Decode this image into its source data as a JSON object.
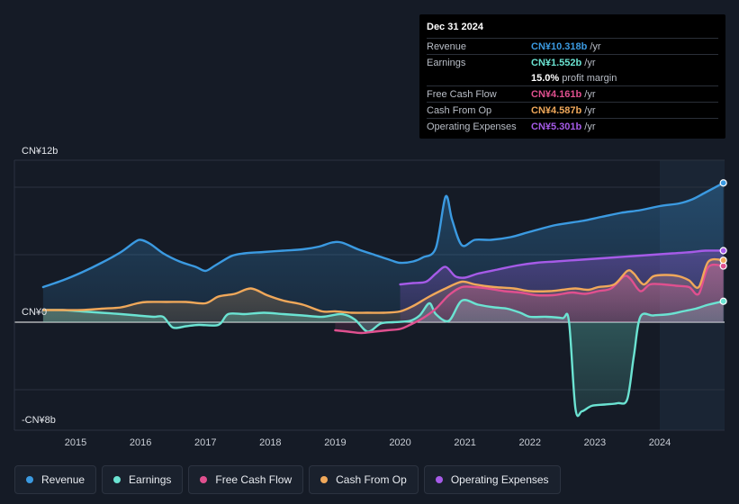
{
  "tooltip": {
    "date": "Dec 31 2024",
    "rows": [
      {
        "label": "Revenue",
        "value": "CN¥10.318b",
        "unit": "/yr",
        "color": "#3b9ae1"
      },
      {
        "label": "Earnings",
        "value": "CN¥1.552b",
        "unit": "/yr",
        "color": "#6be3d2"
      },
      {
        "label": "",
        "value": "15.0%",
        "unit": "profit margin",
        "color": "#ffffff"
      },
      {
        "label": "Free Cash Flow",
        "value": "CN¥4.161b",
        "unit": "/yr",
        "color": "#e0508f"
      },
      {
        "label": "Cash From Op",
        "value": "CN¥4.587b",
        "unit": "/yr",
        "color": "#f0a85a"
      },
      {
        "label": "Operating Expenses",
        "value": "CN¥5.301b",
        "unit": "/yr",
        "color": "#a65be8"
      }
    ]
  },
  "legend": [
    {
      "label": "Revenue",
      "color": "#3b9ae1"
    },
    {
      "label": "Earnings",
      "color": "#6be3d2"
    },
    {
      "label": "Free Cash Flow",
      "color": "#e0508f"
    },
    {
      "label": "Cash From Op",
      "color": "#f0a85a"
    },
    {
      "label": "Operating Expenses",
      "color": "#a65be8"
    }
  ],
  "chart_data": {
    "type": "area",
    "currency": "CN¥",
    "y_unit": "billions",
    "ylim": [
      -8,
      12
    ],
    "y_tick_labels": [
      {
        "value": 12,
        "label": "CN¥12b"
      },
      {
        "value": 0,
        "label": "CN¥0"
      },
      {
        "value": -8,
        "label": "-CN¥8b"
      }
    ],
    "x_ticks": [
      2015,
      2016,
      2017,
      2018,
      2019,
      2020,
      2021,
      2022,
      2023,
      2024
    ],
    "xlim": [
      2014.45,
      2024.98
    ],
    "forecast_shade_from": 2024.0,
    "series": [
      {
        "name": "Revenue",
        "color": "#3b9ae1",
        "fill": true,
        "end_marker": true,
        "points": [
          [
            2014.5,
            2.6
          ],
          [
            2014.8,
            3.1
          ],
          [
            2015.1,
            3.7
          ],
          [
            2015.4,
            4.4
          ],
          [
            2015.7,
            5.2
          ],
          [
            2015.9,
            5.9
          ],
          [
            2016.0,
            6.1
          ],
          [
            2016.15,
            5.8
          ],
          [
            2016.35,
            5.1
          ],
          [
            2016.6,
            4.5
          ],
          [
            2016.85,
            4.1
          ],
          [
            2017.0,
            3.8
          ],
          [
            2017.15,
            4.2
          ],
          [
            2017.4,
            4.9
          ],
          [
            2017.6,
            5.1
          ],
          [
            2017.9,
            5.2
          ],
          [
            2018.2,
            5.3
          ],
          [
            2018.5,
            5.4
          ],
          [
            2018.75,
            5.6
          ],
          [
            2018.95,
            5.9
          ],
          [
            2019.1,
            5.9
          ],
          [
            2019.35,
            5.4
          ],
          [
            2019.6,
            5.0
          ],
          [
            2019.85,
            4.6
          ],
          [
            2020.0,
            4.4
          ],
          [
            2020.2,
            4.5
          ],
          [
            2020.35,
            4.8
          ],
          [
            2020.55,
            5.5
          ],
          [
            2020.7,
            9.3
          ],
          [
            2020.8,
            7.6
          ],
          [
            2020.95,
            5.7
          ],
          [
            2021.15,
            6.1
          ],
          [
            2021.4,
            6.1
          ],
          [
            2021.7,
            6.3
          ],
          [
            2022.0,
            6.7
          ],
          [
            2022.4,
            7.2
          ],
          [
            2022.8,
            7.5
          ],
          [
            2023.1,
            7.8
          ],
          [
            2023.4,
            8.1
          ],
          [
            2023.7,
            8.3
          ],
          [
            2024.0,
            8.6
          ],
          [
            2024.3,
            8.8
          ],
          [
            2024.5,
            9.1
          ],
          [
            2024.7,
            9.6
          ],
          [
            2024.98,
            10.318
          ]
        ]
      },
      {
        "name": "Earnings",
        "color": "#6be3d2",
        "fill": true,
        "end_marker": true,
        "points": [
          [
            2014.5,
            0.9
          ],
          [
            2014.8,
            0.9
          ],
          [
            2015.1,
            0.8
          ],
          [
            2015.4,
            0.7
          ],
          [
            2015.7,
            0.6
          ],
          [
            2015.95,
            0.5
          ],
          [
            2016.2,
            0.4
          ],
          [
            2016.35,
            0.4
          ],
          [
            2016.5,
            -0.4
          ],
          [
            2016.7,
            -0.3
          ],
          [
            2016.9,
            -0.2
          ],
          [
            2017.2,
            -0.2
          ],
          [
            2017.35,
            0.6
          ],
          [
            2017.6,
            0.6
          ],
          [
            2017.9,
            0.7
          ],
          [
            2018.2,
            0.6
          ],
          [
            2018.5,
            0.5
          ],
          [
            2018.8,
            0.4
          ],
          [
            2019.1,
            0.6
          ],
          [
            2019.3,
            0.2
          ],
          [
            2019.5,
            -0.7
          ],
          [
            2019.7,
            -0.1
          ],
          [
            2019.9,
            0.0
          ],
          [
            2020.15,
            0.1
          ],
          [
            2020.3,
            0.5
          ],
          [
            2020.45,
            1.4
          ],
          [
            2020.55,
            0.6
          ],
          [
            2020.75,
            0.1
          ],
          [
            2020.95,
            1.6
          ],
          [
            2021.2,
            1.3
          ],
          [
            2021.45,
            1.1
          ],
          [
            2021.65,
            1.0
          ],
          [
            2021.85,
            0.7
          ],
          [
            2022.0,
            0.4
          ],
          [
            2022.25,
            0.4
          ],
          [
            2022.5,
            0.3
          ],
          [
            2022.6,
            0.1
          ],
          [
            2022.7,
            -6.4
          ],
          [
            2022.8,
            -6.6
          ],
          [
            2022.95,
            -6.2
          ],
          [
            2023.15,
            -6.1
          ],
          [
            2023.35,
            -6.0
          ],
          [
            2023.5,
            -5.7
          ],
          [
            2023.6,
            -2.5
          ],
          [
            2023.7,
            0.4
          ],
          [
            2023.9,
            0.5
          ],
          [
            2024.15,
            0.6
          ],
          [
            2024.35,
            0.8
          ],
          [
            2024.55,
            1.0
          ],
          [
            2024.75,
            1.3
          ],
          [
            2024.98,
            1.552
          ]
        ]
      },
      {
        "name": "Free Cash Flow",
        "color": "#e0508f",
        "fill": true,
        "end_marker": true,
        "points": [
          [
            2019.0,
            -0.6
          ],
          [
            2019.2,
            -0.7
          ],
          [
            2019.4,
            -0.8
          ],
          [
            2019.6,
            -0.7
          ],
          [
            2019.8,
            -0.6
          ],
          [
            2020.0,
            -0.5
          ],
          [
            2020.15,
            -0.2
          ],
          [
            2020.35,
            0.3
          ],
          [
            2020.55,
            1.0
          ],
          [
            2020.75,
            2.0
          ],
          [
            2020.95,
            2.6
          ],
          [
            2021.15,
            2.6
          ],
          [
            2021.35,
            2.5
          ],
          [
            2021.6,
            2.3
          ],
          [
            2021.85,
            2.2
          ],
          [
            2022.1,
            2.0
          ],
          [
            2022.35,
            2.0
          ],
          [
            2022.5,
            2.1
          ],
          [
            2022.65,
            2.2
          ],
          [
            2022.85,
            2.1
          ],
          [
            2023.05,
            2.3
          ],
          [
            2023.25,
            2.5
          ],
          [
            2023.45,
            3.4
          ],
          [
            2023.55,
            3.2
          ],
          [
            2023.7,
            2.3
          ],
          [
            2023.85,
            2.8
          ],
          [
            2024.05,
            2.8
          ],
          [
            2024.25,
            2.7
          ],
          [
            2024.45,
            2.6
          ],
          [
            2024.6,
            2.1
          ],
          [
            2024.75,
            4.1
          ],
          [
            2024.98,
            4.161
          ]
        ]
      },
      {
        "name": "Cash From Op",
        "color": "#f0a85a",
        "fill": true,
        "end_marker": true,
        "points": [
          [
            2014.5,
            0.9
          ],
          [
            2014.8,
            0.9
          ],
          [
            2015.1,
            0.9
          ],
          [
            2015.4,
            1.0
          ],
          [
            2015.7,
            1.1
          ],
          [
            2015.95,
            1.4
          ],
          [
            2016.1,
            1.5
          ],
          [
            2016.4,
            1.5
          ],
          [
            2016.7,
            1.5
          ],
          [
            2017.0,
            1.4
          ],
          [
            2017.2,
            1.9
          ],
          [
            2017.45,
            2.1
          ],
          [
            2017.7,
            2.5
          ],
          [
            2017.95,
            2.0
          ],
          [
            2018.2,
            1.6
          ],
          [
            2018.5,
            1.3
          ],
          [
            2018.8,
            0.8
          ],
          [
            2019.0,
            0.8
          ],
          [
            2019.25,
            0.7
          ],
          [
            2019.5,
            0.7
          ],
          [
            2019.75,
            0.7
          ],
          [
            2020.0,
            0.8
          ],
          [
            2020.2,
            1.2
          ],
          [
            2020.45,
            1.9
          ],
          [
            2020.7,
            2.5
          ],
          [
            2020.95,
            3.0
          ],
          [
            2021.15,
            2.8
          ],
          [
            2021.45,
            2.6
          ],
          [
            2021.75,
            2.5
          ],
          [
            2022.0,
            2.3
          ],
          [
            2022.3,
            2.3
          ],
          [
            2022.5,
            2.4
          ],
          [
            2022.7,
            2.5
          ],
          [
            2022.9,
            2.4
          ],
          [
            2023.05,
            2.6
          ],
          [
            2023.3,
            2.8
          ],
          [
            2023.5,
            3.8
          ],
          [
            2023.6,
            3.6
          ],
          [
            2023.75,
            2.8
          ],
          [
            2023.9,
            3.4
          ],
          [
            2024.1,
            3.5
          ],
          [
            2024.3,
            3.4
          ],
          [
            2024.45,
            3.1
          ],
          [
            2024.6,
            2.6
          ],
          [
            2024.75,
            4.5
          ],
          [
            2024.98,
            4.587
          ]
        ]
      },
      {
        "name": "Operating Expenses",
        "color": "#a65be8",
        "fill": true,
        "end_marker": true,
        "points": [
          [
            2020.0,
            2.8
          ],
          [
            2020.2,
            2.9
          ],
          [
            2020.4,
            3.0
          ],
          [
            2020.55,
            3.6
          ],
          [
            2020.7,
            4.1
          ],
          [
            2020.85,
            3.4
          ],
          [
            2021.0,
            3.3
          ],
          [
            2021.2,
            3.6
          ],
          [
            2021.5,
            3.9
          ],
          [
            2021.8,
            4.2
          ],
          [
            2022.1,
            4.4
          ],
          [
            2022.4,
            4.5
          ],
          [
            2022.7,
            4.6
          ],
          [
            2023.0,
            4.7
          ],
          [
            2023.3,
            4.8
          ],
          [
            2023.6,
            4.9
          ],
          [
            2023.9,
            5.0
          ],
          [
            2024.2,
            5.1
          ],
          [
            2024.5,
            5.2
          ],
          [
            2024.7,
            5.3
          ],
          [
            2024.98,
            5.301
          ]
        ]
      }
    ]
  }
}
